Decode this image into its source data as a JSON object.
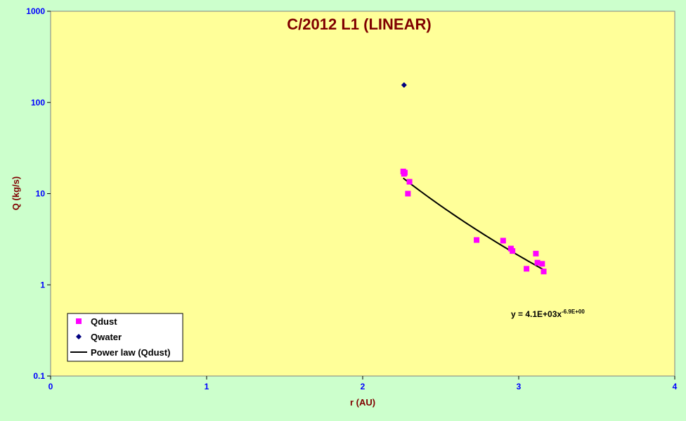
{
  "chart_data": {
    "type": "scatter",
    "title": "C/2012 L1 (LINEAR)",
    "xlabel": "r (AU)",
    "ylabel": "Q (kg/s)",
    "xlim": [
      0,
      4
    ],
    "ylim": [
      0.1,
      1000
    ],
    "y_scale": "log",
    "x_ticks": [
      "0",
      "1",
      "2",
      "3",
      "4"
    ],
    "y_ticks": [
      "0.1",
      "1",
      "10",
      "100",
      "1000"
    ],
    "grid": false,
    "legend_position": "bottom-left",
    "colors": {
      "plot_background": "#ffff99",
      "page_background": "#ccffcc",
      "qdust": "#ff00ff",
      "qwater": "#000080",
      "fit": "#000000",
      "title": "#800000",
      "ticks": "#0000ff"
    },
    "series": [
      {
        "name": "Qdust",
        "marker": "square",
        "x": [
          2.26,
          2.265,
          2.27,
          2.29,
          2.3,
          2.73,
          2.9,
          2.95,
          2.96,
          3.05,
          3.11,
          3.12,
          3.15,
          3.16
        ],
        "y": [
          17.5,
          16.5,
          17.0,
          10.0,
          13.5,
          3.1,
          3.05,
          2.5,
          2.35,
          1.5,
          2.2,
          1.75,
          1.7,
          1.4
        ]
      },
      {
        "name": "Qwater",
        "marker": "diamond",
        "x": [
          2.265
        ],
        "y": [
          155
        ]
      }
    ],
    "fit": {
      "name": "Power law (Qdust)",
      "coefficient": 4100,
      "exponent": -6.9,
      "x_range": [
        2.26,
        3.16
      ],
      "equation_main": "y = 4.1E+03x",
      "equation_exponent": "-6.9E+00"
    }
  }
}
